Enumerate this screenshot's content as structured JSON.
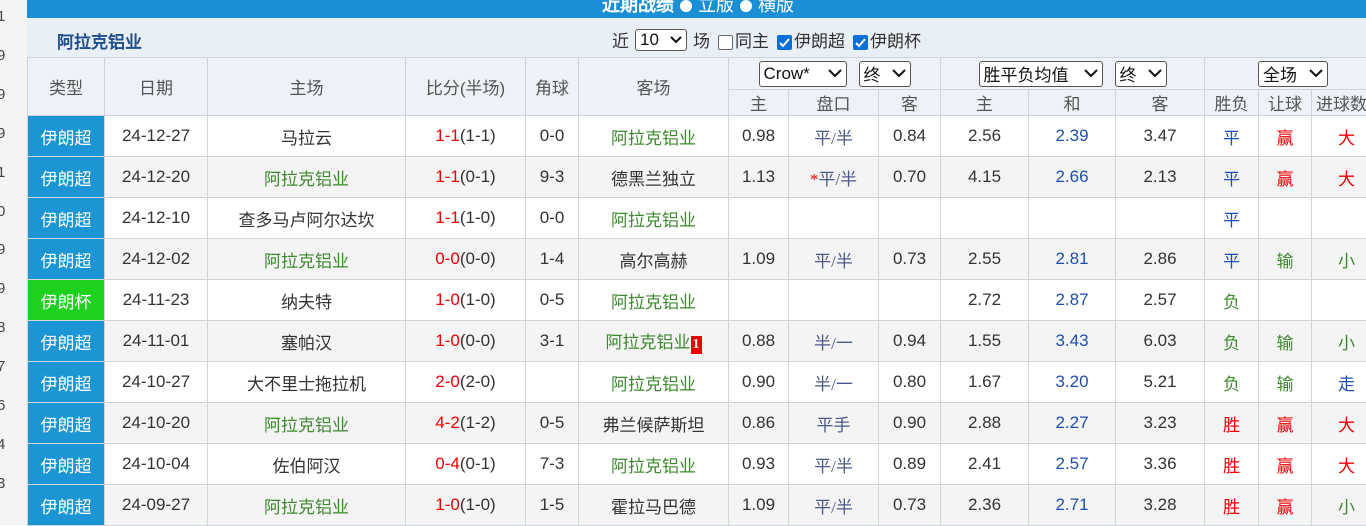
{
  "gutter": [
    "1",
    "9",
    "9",
    "9",
    "1",
    "0",
    "9",
    "9",
    "8",
    "7",
    "6",
    "4",
    "3"
  ],
  "header": {
    "title": "近期战绩",
    "options": [
      "立版",
      "横版"
    ]
  },
  "team": "阿拉克铝业",
  "filter": {
    "prefix": "近",
    "count": "10",
    "suffix": "场",
    "checks": [
      {
        "label": "同主",
        "checked": false
      },
      {
        "label": "伊朗超",
        "checked": true
      },
      {
        "label": "伊朗杯",
        "checked": true
      }
    ]
  },
  "table": {
    "columns": [
      "类型",
      "日期",
      "主场",
      "比分(半场)",
      "角球",
      "客场"
    ],
    "selects": [
      "Crow*",
      "终",
      "胜平负均值",
      "终",
      "全场"
    ],
    "subcolumns": [
      "主",
      "盘口",
      "客",
      "主",
      "和",
      "客",
      "胜负",
      "让球",
      "进球数"
    ],
    "rows": [
      {
        "type": "伊朗超",
        "date": "24-12-27",
        "home": "马拉云",
        "score": "1-1",
        "half": "(1-1)",
        "corners": "0-0",
        "away": "阿拉克铝业",
        "odds": [
          "0.98",
          "平/半",
          "0.84"
        ],
        "avg": [
          "2.56",
          "2.39",
          "3.47"
        ],
        "result": [
          "平",
          "赢",
          "大"
        ]
      },
      {
        "type": "伊朗超",
        "date": "24-12-20",
        "home": "阿拉克铝业",
        "score": "1-1",
        "half": "(0-1)",
        "corners": "9-3",
        "away": "德黑兰独立",
        "odds": [
          "1.13",
          "平/半",
          "0.70"
        ],
        "handicap_flag": "*",
        "avg": [
          "4.15",
          "2.66",
          "2.13"
        ],
        "result": [
          "平",
          "赢",
          "大"
        ]
      },
      {
        "type": "伊朗超",
        "date": "24-12-10",
        "home": "查多马卢阿尔达坎",
        "score": "1-1",
        "half": "(1-0)",
        "corners": "0-0",
        "away": "阿拉克铝业",
        "odds": [
          null,
          null,
          null
        ],
        "avg": [
          null,
          null,
          null
        ],
        "result": [
          "平",
          null,
          null
        ]
      },
      {
        "type": "伊朗超",
        "date": "24-12-02",
        "home": "阿拉克铝业",
        "score": "0-0",
        "half": "(0-0)",
        "corners": "1-4",
        "away": "高尔高赫",
        "odds": [
          "1.09",
          "平/半",
          "0.73"
        ],
        "avg": [
          "2.55",
          "2.81",
          "2.86"
        ],
        "result": [
          "平",
          "输",
          "小"
        ]
      },
      {
        "type": "伊朗杯",
        "date": "24-11-23",
        "home": "纳夫特",
        "score": "1-0",
        "half": "(1-0)",
        "corners": "0-5",
        "away": "阿拉克铝业",
        "odds": [
          null,
          null,
          null
        ],
        "avg": [
          "2.72",
          "2.87",
          "2.57"
        ],
        "result": [
          "负",
          null,
          null
        ]
      },
      {
        "type": "伊朗超",
        "date": "24-11-01",
        "home": "塞帕汉",
        "score": "1-0",
        "half": "(0-0)",
        "corners": "3-1",
        "away": "阿拉克铝业",
        "red_card": "1",
        "odds": [
          "0.88",
          "半/一",
          "0.94"
        ],
        "avg": [
          "1.55",
          "3.43",
          "6.03"
        ],
        "result": [
          "负",
          "输",
          "小"
        ]
      },
      {
        "type": "伊朗超",
        "date": "24-10-27",
        "home": "大不里士拖拉机",
        "score": "2-0",
        "half": "(2-0)",
        "corners": null,
        "away": "阿拉克铝业",
        "odds": [
          "0.90",
          "半/一",
          "0.80"
        ],
        "avg": [
          "1.67",
          "3.20",
          "5.21"
        ],
        "result": [
          "负",
          "输",
          "走"
        ]
      },
      {
        "type": "伊朗超",
        "date": "24-10-20",
        "home": "阿拉克铝业",
        "score": "4-2",
        "half": "(1-2)",
        "corners": "0-5",
        "away": "弗兰候萨斯坦",
        "odds": [
          "0.86",
          "平手",
          "0.90"
        ],
        "avg": [
          "2.88",
          "2.27",
          "3.23"
        ],
        "result": [
          "胜",
          "赢",
          "大"
        ]
      },
      {
        "type": "伊朗超",
        "date": "24-10-04",
        "home": "佐伯阿汉",
        "score": "0-4",
        "half": "(0-1)",
        "corners": "7-3",
        "away": "阿拉克铝业",
        "odds": [
          "0.93",
          "平/半",
          "0.89"
        ],
        "avg": [
          "2.41",
          "2.57",
          "3.36"
        ],
        "result": [
          "胜",
          "赢",
          "大"
        ]
      },
      {
        "type": "伊朗超",
        "date": "24-09-27",
        "home": "阿拉克铝业",
        "score": "1-0",
        "half": "(1-0)",
        "corners": "1-5",
        "away": "霍拉马巴德",
        "odds": [
          "1.09",
          "平/半",
          "0.73"
        ],
        "avg": [
          "2.36",
          "2.71",
          "3.28"
        ],
        "result": [
          "胜",
          "赢",
          "小"
        ]
      }
    ]
  }
}
